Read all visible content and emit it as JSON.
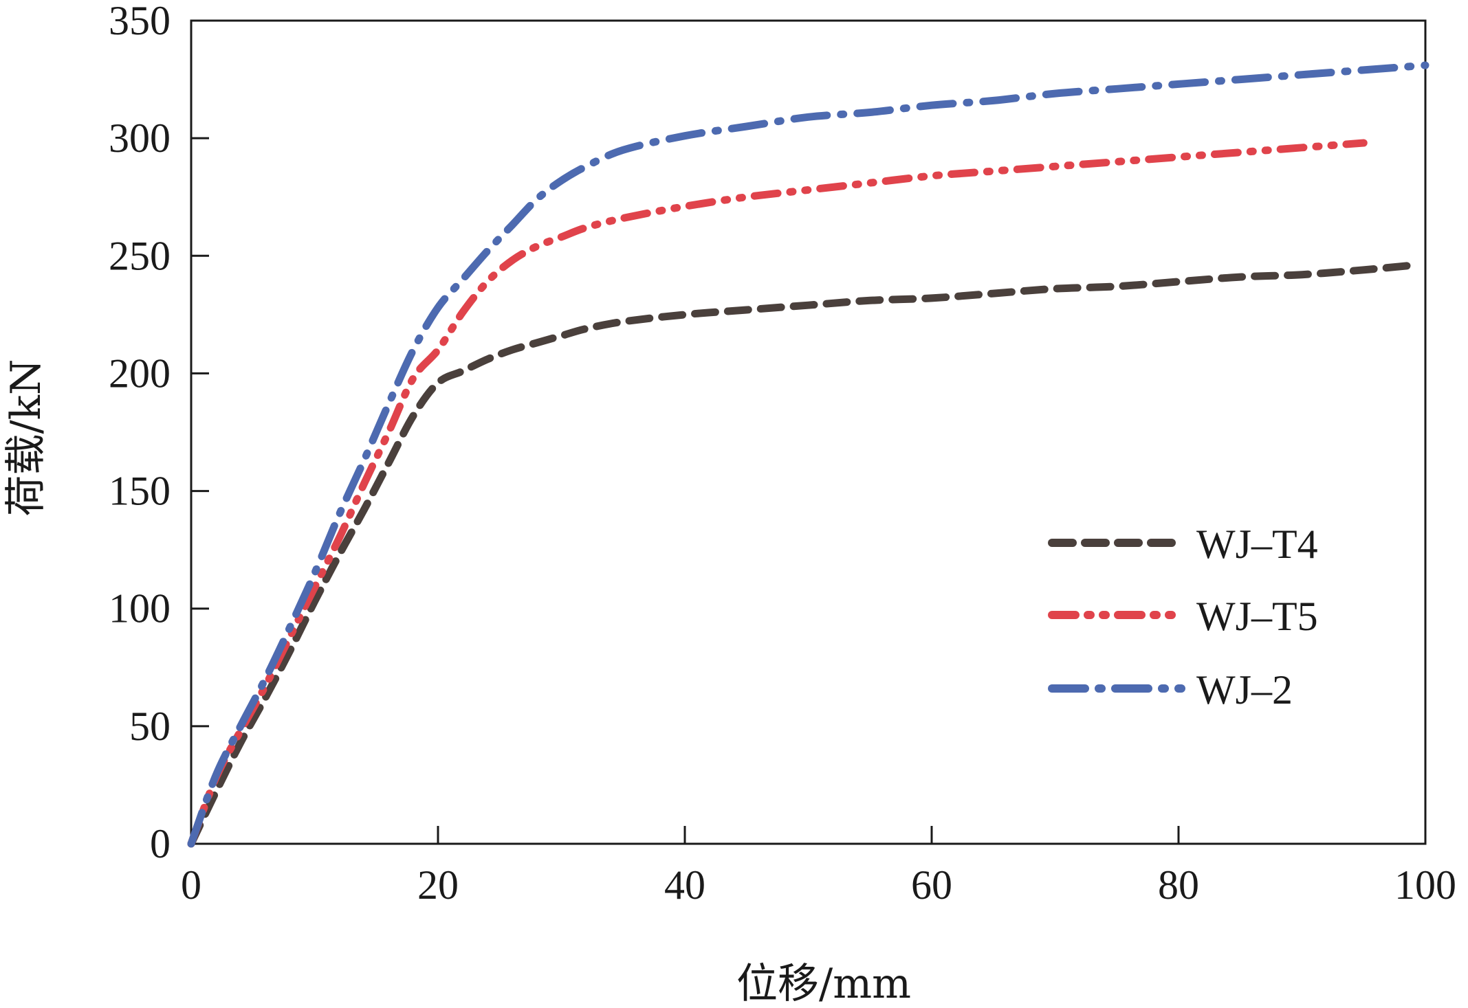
{
  "chart_data": {
    "type": "line",
    "title": "",
    "xlabel": "位移/mm",
    "ylabel": "荷载/kN",
    "xlim": [
      0,
      100
    ],
    "ylim": [
      0,
      350
    ],
    "xticks": [
      0,
      20,
      40,
      60,
      80,
      100
    ],
    "yticks": [
      0,
      50,
      100,
      150,
      200,
      250,
      300,
      350
    ],
    "xtick_labels": [
      "0",
      "20",
      "40",
      "60",
      "80",
      "100"
    ],
    "ytick_labels": [
      "0",
      "50",
      "100",
      "150",
      "200",
      "250",
      "300",
      "350"
    ],
    "grid": false,
    "legend_position": "right-middle",
    "series": [
      {
        "name": "WJ–T4",
        "color": "#4a403c",
        "dash": "dashed",
        "x": [
          0,
          2,
          4,
          6,
          8,
          10,
          12,
          14,
          16,
          18,
          20,
          22,
          24,
          26,
          28,
          30,
          32,
          35,
          40,
          45,
          50,
          55,
          60,
          65,
          70,
          75,
          80,
          85,
          90,
          95,
          99
        ],
        "y": [
          0,
          22,
          43,
          62,
          82,
          103,
          123,
          142,
          162,
          182,
          196,
          201,
          206,
          210,
          213,
          216,
          219,
          222,
          225,
          227,
          229,
          231,
          232,
          234,
          236,
          237,
          239,
          241,
          242,
          244,
          246
        ]
      },
      {
        "name": "WJ–T5",
        "color": "#e0434b",
        "dash": "dash-dot-dot",
        "x": [
          0,
          2,
          4,
          6,
          8,
          10,
          12,
          14,
          16,
          18,
          20,
          22,
          24,
          26,
          28,
          30,
          32,
          35,
          40,
          45,
          50,
          55,
          60,
          65,
          70,
          75,
          80,
          85,
          90,
          95
        ],
        "y": [
          0,
          28,
          48,
          67,
          88,
          109,
          130,
          153,
          175,
          198,
          210,
          226,
          239,
          248,
          254,
          258,
          262,
          266,
          271,
          275,
          278,
          281,
          284,
          286,
          288,
          290,
          292,
          294,
          296,
          298
        ]
      },
      {
        "name": "WJ–2",
        "color": "#4d6ab0",
        "dash": "dash-dot",
        "x": [
          0,
          2,
          4,
          6,
          8,
          10,
          12,
          14,
          16,
          18,
          20,
          22,
          24,
          26,
          28,
          30,
          32,
          35,
          40,
          45,
          50,
          55,
          60,
          65,
          70,
          75,
          80,
          85,
          90,
          95,
          100
        ],
        "y": [
          0,
          29,
          50,
          70,
          92,
          115,
          140,
          163,
          187,
          210,
          228,
          240,
          252,
          263,
          274,
          282,
          288,
          295,
          301,
          305,
          309,
          311,
          314,
          316,
          319,
          321,
          323,
          325,
          327,
          329,
          331
        ]
      }
    ]
  }
}
